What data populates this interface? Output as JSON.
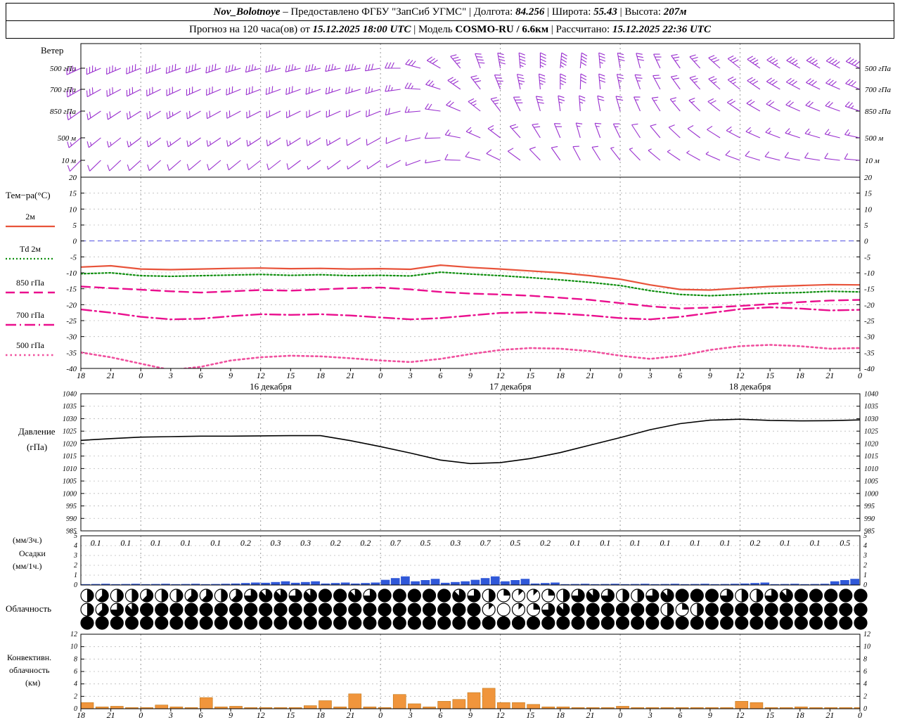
{
  "header": {
    "line1": [
      {
        "text": "Nov_Bolotnoye",
        "style": "bi"
      },
      {
        "text": " – Предоставлено ФГБУ \"ЗапСиб УГМС\" "
      },
      {
        "text": "| Долгота: "
      },
      {
        "text": "84.256",
        "style": "bi"
      },
      {
        "text": " | Широта: "
      },
      {
        "text": "55.43",
        "style": "bi"
      },
      {
        "text": " | Высота: "
      },
      {
        "text": "207м",
        "style": "bi"
      }
    ],
    "line2": [
      {
        "text": "Прогноз на 120 часа(ов) от "
      },
      {
        "text": "15.12.2025 18:00 UTC",
        "style": "bi"
      },
      {
        "text": "  | Модель "
      },
      {
        "text": "COSMO-RU / 6.6км",
        "style": "b"
      },
      {
        "text": " | Рассчитано: "
      },
      {
        "text": "15.12.2025 22:36 UTC",
        "style": "bi"
      }
    ]
  },
  "labels": {
    "wind": "Ветер",
    "temp_title": "Тем−ра(°C)",
    "pressure1": "Давление",
    "pressure2": "(гПа)",
    "precip1": "(мм/3ч.)",
    "precip2": "Осадки",
    "precip3": "(мм/1ч.)",
    "clouds": "Облачность",
    "conv1": "Конвективн.",
    "conv2": "облачность",
    "conv3": "(км)"
  },
  "axis": {
    "hours": [
      "18",
      "21",
      "0",
      "3",
      "6",
      "9",
      "12",
      "15",
      "18",
      "21",
      "0",
      "3",
      "6",
      "9",
      "12",
      "15",
      "18",
      "21",
      "0",
      "3",
      "6",
      "9",
      "12",
      "15",
      "18",
      "21",
      "0"
    ],
    "dates": [
      {
        "label": "16 декабря",
        "t": 19
      },
      {
        "label": "17 декабря",
        "t": 43
      },
      {
        "label": "18 декабря",
        "t": 67
      }
    ]
  },
  "chart_data": [
    {
      "id": "wind",
      "type": "wind-barbs",
      "title": "Ветер",
      "color": "#9a30cf",
      "t_start": 0,
      "t_step": 2,
      "levels": [
        {
          "name": "500 гПа",
          "dirs": [
            245,
            246,
            247,
            248,
            250,
            250,
            252,
            252,
            254,
            255,
            255,
            256,
            257,
            258,
            259,
            260,
            270,
            285,
            300,
            320,
            340,
            350,
            355,
            0,
            5,
            5,
            355,
            350,
            345,
            335,
            325,
            318,
            312,
            308,
            305,
            302,
            300,
            300,
            298,
            296
          ],
          "spds": [
            35,
            35,
            36,
            38,
            40,
            40,
            39,
            38,
            37,
            36,
            36,
            35,
            34,
            34,
            33,
            32,
            30,
            28,
            30,
            34,
            38,
            42,
            45,
            46,
            44,
            40,
            36,
            32,
            28,
            26,
            25,
            27,
            29,
            31,
            33,
            34,
            35,
            36,
            38,
            40
          ]
        },
        {
          "name": "700 гПа",
          "dirs": [
            240,
            241,
            242,
            243,
            244,
            245,
            246,
            247,
            248,
            249,
            250,
            250,
            251,
            252,
            253,
            254,
            262,
            274,
            288,
            305,
            322,
            338,
            348,
            355,
            0,
            2,
            355,
            348,
            340,
            332,
            324,
            318,
            312,
            308,
            304,
            300,
            298,
            296,
            294,
            292
          ],
          "spds": [
            28,
            28,
            29,
            30,
            31,
            31,
            30,
            30,
            29,
            29,
            28,
            28,
            27,
            27,
            26,
            26,
            25,
            24,
            25,
            28,
            31,
            34,
            36,
            37,
            35,
            32,
            29,
            26,
            24,
            22,
            22,
            23,
            25,
            26,
            28,
            29,
            30,
            30,
            31,
            32
          ]
        },
        {
          "name": "850 гПа",
          "dirs": [
            235,
            236,
            237,
            238,
            239,
            240,
            240,
            241,
            242,
            243,
            244,
            244,
            245,
            246,
            247,
            248,
            255,
            265,
            278,
            293,
            308,
            322,
            334,
            344,
            352,
            356,
            350,
            344,
            336,
            328,
            320,
            314,
            308,
            304,
            300,
            297,
            294,
            292,
            290,
            288
          ],
          "spds": [
            20,
            20,
            21,
            22,
            22,
            23,
            22,
            22,
            21,
            21,
            20,
            20,
            20,
            19,
            19,
            19,
            18,
            17,
            18,
            20,
            23,
            26,
            28,
            28,
            27,
            24,
            21,
            19,
            17,
            16,
            16,
            17,
            18,
            19,
            20,
            21,
            21,
            22,
            22,
            23
          ]
        },
        {
          "name": "500 м",
          "dirs": [
            230,
            231,
            232,
            233,
            234,
            234,
            235,
            236,
            236,
            237,
            238,
            238,
            239,
            240,
            240,
            241,
            248,
            257,
            268,
            281,
            294,
            307,
            318,
            328,
            337,
            344,
            340,
            334,
            327,
            320,
            313,
            307,
            302,
            298,
            294,
            291,
            288,
            286,
            284,
            282
          ],
          "spds": [
            14,
            14,
            15,
            15,
            16,
            16,
            15,
            15,
            14,
            14,
            14,
            13,
            13,
            13,
            12,
            12,
            12,
            11,
            12,
            13,
            15,
            17,
            19,
            19,
            18,
            16,
            14,
            13,
            12,
            11,
            11,
            12,
            12,
            13,
            14,
            14,
            15,
            15,
            16,
            16
          ]
        },
        {
          "name": "10 м",
          "dirs": [
            225,
            226,
            227,
            228,
            228,
            229,
            230,
            230,
            231,
            232,
            232,
            233,
            234,
            234,
            235,
            236,
            242,
            250,
            260,
            272,
            284,
            296,
            306,
            316,
            325,
            332,
            328,
            322,
            316,
            310,
            304,
            299,
            294,
            290,
            287,
            284,
            281,
            279,
            277,
            275
          ],
          "spds": [
            8,
            8,
            9,
            9,
            10,
            10,
            9,
            9,
            8,
            8,
            8,
            8,
            7,
            7,
            7,
            7,
            7,
            6,
            7,
            8,
            9,
            10,
            11,
            11,
            10,
            9,
            8,
            7,
            7,
            6,
            6,
            7,
            7,
            8,
            8,
            9,
            9,
            9,
            10,
            10
          ]
        }
      ]
    },
    {
      "id": "temperature",
      "type": "line",
      "title": "Тем−ра(°C)",
      "x_step_h": 3,
      "ylim": [
        -40,
        20
      ],
      "yticks": [
        20,
        15,
        10,
        5,
        0,
        -5,
        -10,
        -15,
        -20,
        -25,
        -30,
        -35,
        -40
      ],
      "zero_line_color": "#5050e6",
      "series": [
        {
          "name": "2м",
          "color": "#e8533a",
          "dash": "",
          "width": 2.2,
          "values": [
            -8.2,
            -7.8,
            -8.8,
            -9.0,
            -8.8,
            -8.6,
            -8.5,
            -8.7,
            -8.6,
            -8.8,
            -8.7,
            -8.9,
            -7.6,
            -8.3,
            -8.8,
            -9.4,
            -10.0,
            -10.9,
            -12.0,
            -13.8,
            -15.2,
            -15.4,
            -14.8,
            -14.3,
            -14.0,
            -13.7,
            -13.8
          ]
        },
        {
          "name": "Td 2м",
          "color": "#0f8f0f",
          "dash": "2 3",
          "width": 2.2,
          "values": [
            -10.3,
            -10.0,
            -10.9,
            -11.1,
            -10.9,
            -10.7,
            -10.5,
            -10.8,
            -10.6,
            -10.9,
            -10.8,
            -11.0,
            -9.8,
            -10.4,
            -10.9,
            -11.5,
            -12.2,
            -13.0,
            -14.0,
            -15.6,
            -16.8,
            -17.2,
            -16.8,
            -16.4,
            -16.2,
            -15.8,
            -16.0
          ]
        },
        {
          "name": "850 гПа",
          "color": "#ea0f8e",
          "dash": "13 7",
          "width": 2.4,
          "values": [
            -14.3,
            -14.8,
            -15.3,
            -15.8,
            -16.2,
            -15.8,
            -15.4,
            -15.6,
            -15.2,
            -14.8,
            -14.6,
            -15.2,
            -16.0,
            -16.5,
            -16.8,
            -17.2,
            -17.8,
            -18.5,
            -19.5,
            -20.5,
            -21.2,
            -20.9,
            -20.4,
            -19.8,
            -19.2,
            -18.7,
            -18.5
          ]
        },
        {
          "name": "700 гПа",
          "color": "#ea0f8e",
          "dash": "15 5 2 5",
          "width": 2.4,
          "values": [
            -21.5,
            -22.5,
            -23.8,
            -24.6,
            -24.4,
            -23.6,
            -23.0,
            -23.2,
            -23.0,
            -23.4,
            -24.0,
            -24.6,
            -24.2,
            -23.4,
            -22.6,
            -22.4,
            -22.8,
            -23.4,
            -24.2,
            -24.6,
            -23.8,
            -22.6,
            -21.4,
            -20.8,
            -21.2,
            -21.8,
            -21.6
          ]
        },
        {
          "name": "500 гПа",
          "color": "#f0509e",
          "dash": "2.5 4",
          "width": 2.6,
          "values": [
            -35.0,
            -36.5,
            -38.5,
            -40.5,
            -39.5,
            -37.5,
            -36.5,
            -36.0,
            -36.2,
            -36.8,
            -37.5,
            -38.0,
            -37.0,
            -35.5,
            -34.2,
            -33.6,
            -33.8,
            -34.6,
            -36.0,
            -37.0,
            -36.0,
            -34.2,
            -33.0,
            -32.6,
            -33.0,
            -33.8,
            -33.6
          ]
        }
      ]
    },
    {
      "id": "pressure",
      "type": "line",
      "title": "Давление (гПа)",
      "x_step_h": 3,
      "ylim": [
        985,
        1040
      ],
      "yticks": [
        1040,
        1035,
        1030,
        1025,
        1020,
        1015,
        1010,
        1005,
        1000,
        995,
        990,
        985
      ],
      "series": [
        {
          "name": "Давление",
          "color": "#000000",
          "dash": "",
          "width": 1.6,
          "values": [
            1021.3,
            1022.0,
            1022.6,
            1022.8,
            1023.0,
            1023.0,
            1023.1,
            1023.2,
            1023.2,
            1021.2,
            1018.8,
            1016.2,
            1013.4,
            1012.0,
            1012.4,
            1014.0,
            1016.4,
            1019.4,
            1022.4,
            1025.6,
            1028.0,
            1029.4,
            1029.8,
            1029.3,
            1029.1,
            1029.2,
            1029.5
          ]
        }
      ]
    },
    {
      "id": "precip",
      "type": "bar",
      "title": "Осадки (мм/3ч., мм/1ч.)",
      "x_step_h": 3,
      "ylim": [
        0,
        5
      ],
      "yticks": [
        5,
        4,
        3,
        2,
        1,
        0
      ],
      "color": "#3058d8",
      "values": [
        0.1,
        0.1,
        0.1,
        0.1,
        0.1,
        0.2,
        0.3,
        0.3,
        0.2,
        0.2,
        0.7,
        0.5,
        0.3,
        0.7,
        0.5,
        0.2,
        0.1,
        0.1,
        0.1,
        0.1,
        0.1,
        0.1,
        0.2,
        0.1,
        0.1,
        0.5
      ]
    },
    {
      "id": "clouds",
      "type": "cloud-symbols",
      "title": "Облачность",
      "x_step_h": 1.5,
      "units": "oktas",
      "oktas_rows": [
        [
          4,
          5,
          4,
          4,
          5,
          4,
          4,
          5,
          5,
          4,
          5,
          6,
          7,
          7,
          6,
          7,
          8,
          8,
          7,
          6,
          8,
          8,
          8,
          8,
          8,
          7,
          6,
          4,
          2,
          1,
          1,
          2,
          4,
          6,
          7,
          6,
          4,
          4,
          6,
          7,
          8,
          8,
          8,
          6,
          4,
          4,
          6,
          7,
          8,
          8,
          8,
          8,
          8
        ],
        [
          4,
          5,
          6,
          7,
          8,
          8,
          8,
          8,
          8,
          8,
          8,
          8,
          8,
          8,
          8,
          8,
          8,
          8,
          8,
          8,
          8,
          8,
          8,
          8,
          8,
          8,
          8,
          1,
          0,
          1,
          2,
          6,
          7,
          8,
          8,
          8,
          8,
          8,
          8,
          4,
          2,
          4,
          8,
          8,
          8,
          8,
          8,
          8,
          8,
          8,
          8,
          8,
          8
        ],
        [
          8,
          8,
          8,
          8,
          8,
          8,
          8,
          8,
          8,
          8,
          8,
          8,
          8,
          8,
          8,
          8,
          8,
          8,
          8,
          8,
          8,
          8,
          8,
          8,
          8,
          8,
          8,
          8,
          8,
          8,
          8,
          8,
          8,
          8,
          8,
          8,
          8,
          8,
          8,
          8,
          8,
          8,
          8,
          8,
          8,
          8,
          8,
          8,
          8,
          8,
          8,
          8,
          8
        ]
      ]
    },
    {
      "id": "conv",
      "type": "bar",
      "title": "Конвективная облачность (км)",
      "x_step_h": 1.5,
      "ylim": [
        0,
        12
      ],
      "yticks": [
        12,
        10,
        8,
        6,
        4,
        2,
        0
      ],
      "color": "#f0953c",
      "values": [
        1.0,
        0.3,
        0.4,
        0.2,
        0.2,
        0.6,
        0.3,
        0.2,
        1.8,
        0.3,
        0.4,
        0.2,
        0.2,
        0.2,
        0.2,
        0.5,
        1.3,
        0.3,
        2.4,
        0.3,
        0.2,
        2.3,
        0.8,
        0.3,
        1.2,
        1.5,
        2.6,
        3.3,
        1.0,
        1.0,
        0.7,
        0.3,
        0.3,
        0.2,
        0.2,
        0.2,
        0.4,
        0.2,
        0.2,
        0.2,
        0.2,
        0.2,
        0.2,
        0.2,
        1.2,
        1.0,
        0.2,
        0.2,
        0.3,
        0.2,
        0.2,
        0.2,
        0.2
      ]
    }
  ]
}
